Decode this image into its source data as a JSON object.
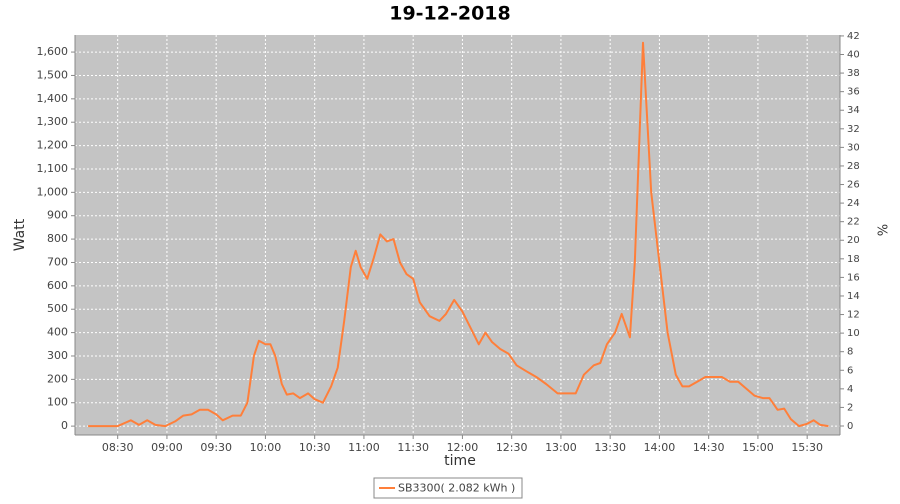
{
  "chart_data": {
    "type": "line",
    "title": "19-12-2018",
    "x_label": "time",
    "y_label": "Watt",
    "y2_label": "%",
    "x": [
      "08:12",
      "08:30",
      "08:38",
      "08:43",
      "08:48",
      "08:53",
      "08:59",
      "09:05",
      "09:10",
      "09:15",
      "09:20",
      "09:25",
      "09:30",
      "09:34",
      "09:40",
      "09:45",
      "09:49",
      "09:53",
      "09:56",
      "10:00",
      "10:03",
      "10:06",
      "10:10",
      "10:13",
      "10:17",
      "10:21",
      "10:26",
      "10:30",
      "10:35",
      "10:40",
      "10:44",
      "10:48",
      "10:52",
      "10:55",
      "10:58",
      "11:02",
      "11:06",
      "11:10",
      "11:14",
      "11:18",
      "11:22",
      "11:26",
      "11:30",
      "11:34",
      "11:40",
      "11:46",
      "11:50",
      "11:55",
      "12:00",
      "12:05",
      "12:10",
      "12:14",
      "12:18",
      "12:23",
      "12:28",
      "12:33",
      "12:40",
      "12:45",
      "12:51",
      "12:58",
      "13:05",
      "13:09",
      "13:14",
      "13:20",
      "13:24",
      "13:28",
      "13:33",
      "13:37",
      "13:42",
      "13:45",
      "13:50",
      "13:55",
      "14:00",
      "14:05",
      "14:10",
      "14:14",
      "14:18",
      "14:23",
      "14:28",
      "14:33",
      "14:38",
      "14:43",
      "14:48",
      "14:53",
      "14:58",
      "15:03",
      "15:07",
      "15:12",
      "15:16",
      "15:20",
      "15:25",
      "15:30",
      "15:34",
      "15:38",
      "15:43"
    ],
    "series": [
      {
        "name": "SB3300( 2.082 kWh )",
        "color": "#ff7f3a",
        "values": [
          0,
          0,
          25,
          5,
          25,
          5,
          0,
          20,
          45,
          50,
          70,
          70,
          50,
          25,
          45,
          45,
          100,
          300,
          365,
          350,
          350,
          300,
          180,
          135,
          140,
          120,
          140,
          115,
          100,
          170,
          250,
          450,
          680,
          750,
          680,
          630,
          720,
          820,
          790,
          800,
          700,
          650,
          630,
          530,
          470,
          450,
          480,
          540,
          490,
          420,
          350,
          400,
          360,
          330,
          310,
          260,
          230,
          210,
          180,
          140,
          140,
          140,
          220,
          260,
          270,
          350,
          400,
          480,
          380,
          700,
          1640,
          1000,
          700,
          400,
          220,
          170,
          170,
          190,
          210,
          210,
          210,
          190,
          190,
          160,
          130,
          120,
          120,
          70,
          75,
          30,
          0,
          10,
          25,
          5,
          0
        ]
      }
    ],
    "xlim": [
      "08:04",
      "15:50"
    ],
    "xticks": [
      "08:30",
      "09:00",
      "09:30",
      "10:00",
      "10:30",
      "11:00",
      "11:30",
      "12:00",
      "12:30",
      "13:00",
      "13:30",
      "14:00",
      "14:30",
      "15:00",
      "15:30"
    ],
    "ylim": [
      -38,
      1673
    ],
    "yticks": [
      0,
      100,
      200,
      300,
      400,
      500,
      600,
      700,
      800,
      900,
      {
        "value": 1000,
        "label": "1,000"
      },
      {
        "value": 1100,
        "label": "1,100"
      },
      {
        "value": 1200,
        "label": "1,200"
      },
      {
        "value": 1300,
        "label": "1,300"
      },
      {
        "value": 1400,
        "label": "1,400"
      },
      {
        "value": 1500,
        "label": "1,500"
      },
      {
        "value": 1600,
        "label": "1,600"
      }
    ],
    "y2lim": [
      -0.97,
      42.1
    ],
    "y2ticks": [
      0,
      2,
      4,
      6,
      8,
      10,
      12,
      14,
      16,
      18,
      20,
      22,
      24,
      26,
      28,
      30,
      32,
      34,
      36,
      38,
      40,
      42
    ],
    "grid": true,
    "legend": "bottom"
  }
}
